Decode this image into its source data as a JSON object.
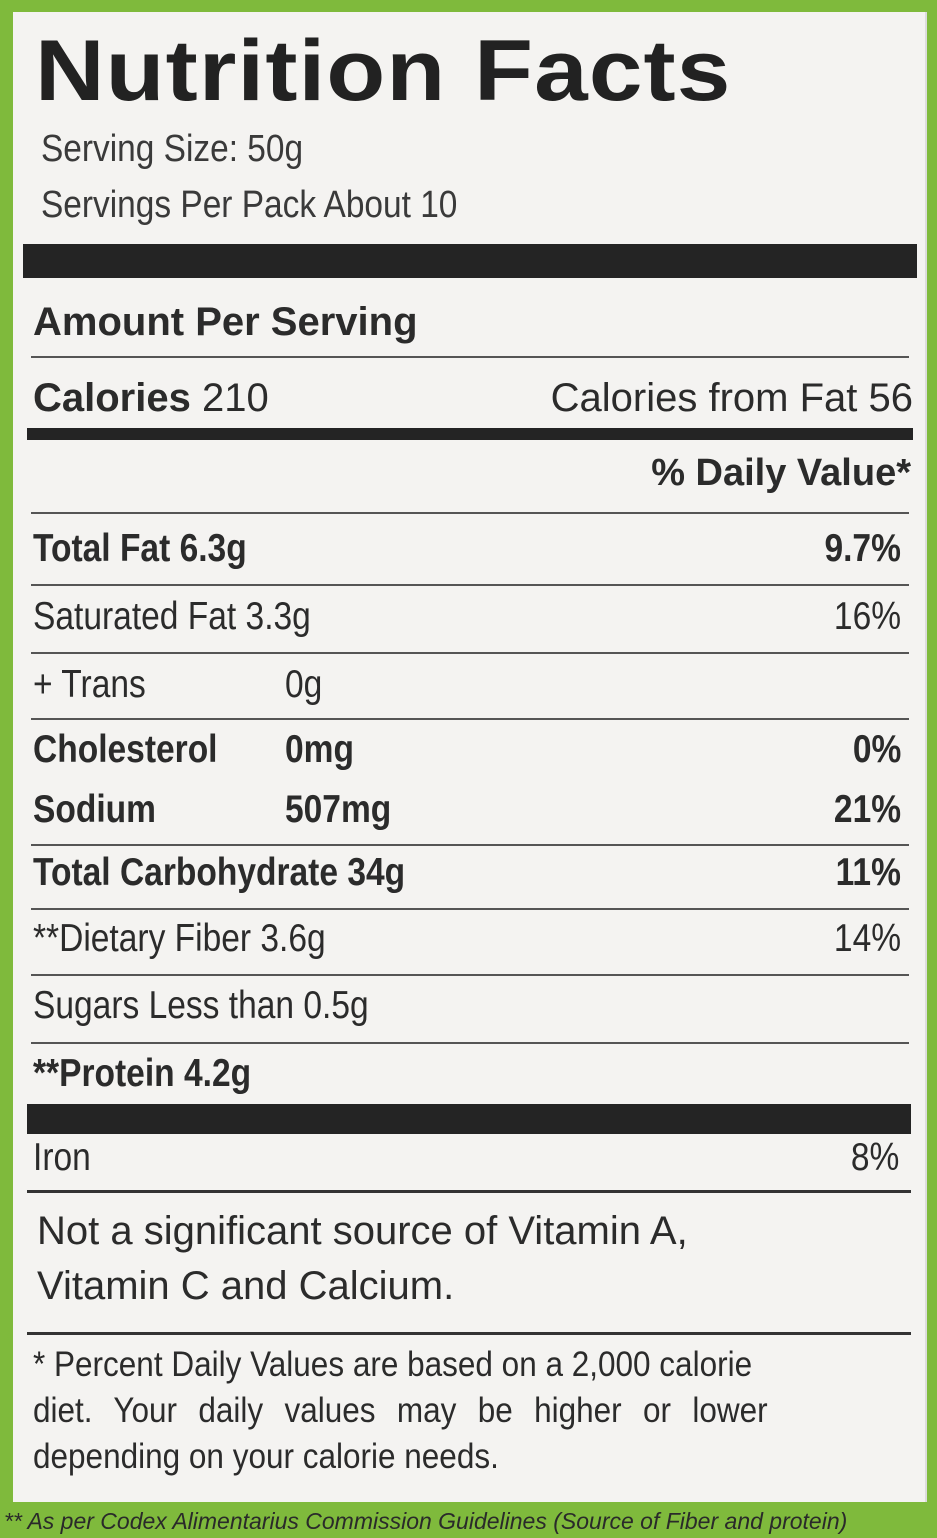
{
  "title": "Nutrition Facts",
  "serving_size": "Serving Size: 50g",
  "servings_per_pack": "Servings Per Pack About 10",
  "amount_per_serving": "Amount Per Serving",
  "calories_label": "Calories",
  "calories_value": "210",
  "calories_from_fat": "Calories from Fat 56",
  "daily_value_header": "% Daily Value*",
  "rows": [
    {
      "name": "Total Fat",
      "amount": "6.3g",
      "dv": "9.7%"
    },
    {
      "name": "Saturated Fat",
      "amount": "3.3g",
      "dv": "16%"
    },
    {
      "name": "+ Trans",
      "amount": "0g",
      "dv": ""
    },
    {
      "name": "Cholesterol",
      "amount": "0mg",
      "dv": "0%"
    },
    {
      "name": "Sodium",
      "amount": "507mg",
      "dv": "21%"
    },
    {
      "name": "Total Carbohydrate",
      "amount": "34g",
      "dv": "11%"
    },
    {
      "name": "**Dietary Fiber",
      "amount": "3.6g",
      "dv": "14%"
    },
    {
      "name": "Sugars Less than",
      "amount": "0.5g",
      "dv": ""
    },
    {
      "name": "**Protein",
      "amount": "4.2g",
      "dv": ""
    }
  ],
  "iron": {
    "name": "Iron",
    "dv": "8%"
  },
  "not_significant": [
    "Not a significant source of Vitamin A,",
    "Vitamin C and Calcium."
  ],
  "footnote": [
    "* Percent Daily Values are based on a 2,000 calorie",
    "diet. Your daily values may be higher or lower",
    "depending on your calorie needs."
  ],
  "codex_note": "** As per Codex Alimentarius Commission Guidelines (Source of Fiber and protein)",
  "colors": {
    "background_green": "#7fba3c",
    "label_bg": "#f4f3f1",
    "ink": "#242424"
  }
}
